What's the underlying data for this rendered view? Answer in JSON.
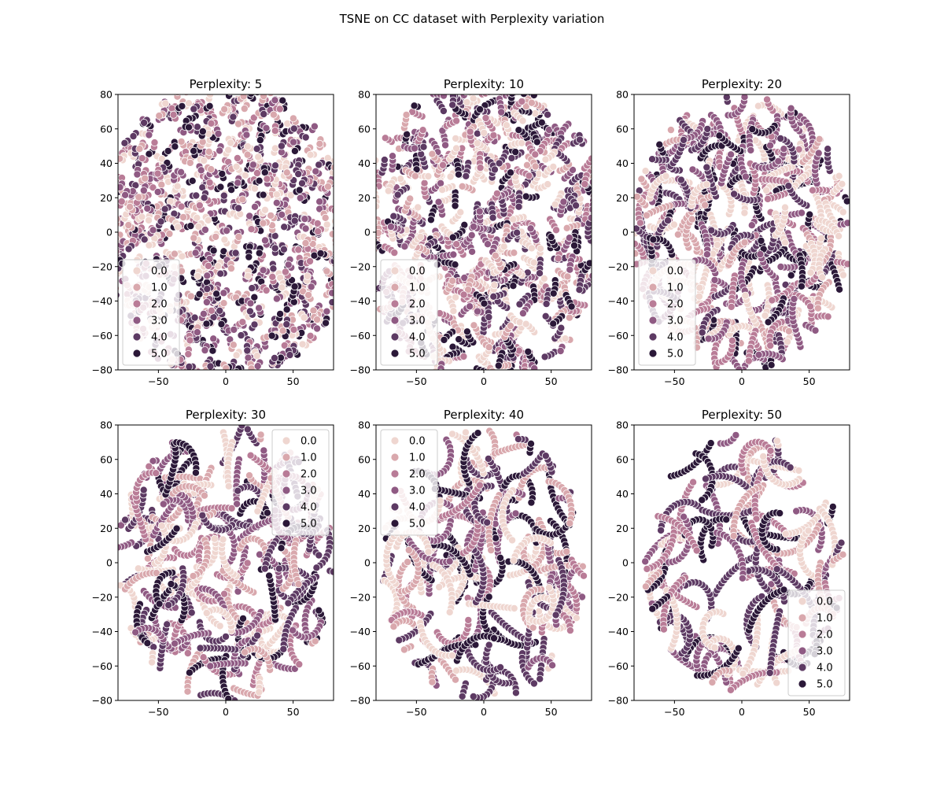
{
  "suptitle": "TSNE on CC dataset with Perplexity variation",
  "chart_data": [
    {
      "type": "scatter",
      "title": "Perplexity: 5",
      "perplexity": 5,
      "xlim": [
        -80,
        80
      ],
      "ylim": [
        -80,
        80
      ],
      "xticks": [
        -50,
        0,
        50
      ],
      "yticks": [
        -80,
        -60,
        -40,
        -20,
        0,
        20,
        40,
        60,
        80
      ],
      "hue_levels": [
        "0.0",
        "1.0",
        "2.0",
        "3.0",
        "4.0",
        "5.0"
      ],
      "legend_loc": "lower-left",
      "point_cloud_extent": {
        "x": [
          -80,
          80
        ],
        "y": [
          -80,
          80
        ]
      },
      "pattern": "dense uniform mixed cloud filling the whole axes"
    },
    {
      "type": "scatter",
      "title": "Perplexity: 10",
      "perplexity": 10,
      "xlim": [
        -80,
        80
      ],
      "ylim": [
        -80,
        80
      ],
      "xticks": [
        -50,
        0,
        50
      ],
      "yticks": [
        -80,
        -60,
        -40,
        -20,
        0,
        20,
        40,
        60,
        80
      ],
      "hue_levels": [
        "0.0",
        "1.0",
        "2.0",
        "3.0",
        "4.0",
        "5.0"
      ],
      "legend_loc": "lower-left",
      "point_cloud_extent": {
        "x": [
          -80,
          80
        ],
        "y": [
          -80,
          80
        ]
      },
      "pattern": "dense circular cloud with short worm-like clusters"
    },
    {
      "type": "scatter",
      "title": "Perplexity: 20",
      "perplexity": 20,
      "xlim": [
        -80,
        80
      ],
      "ylim": [
        -80,
        80
      ],
      "xticks": [
        -50,
        0,
        50
      ],
      "yticks": [
        -80,
        -60,
        -40,
        -20,
        0,
        20,
        40,
        60,
        80
      ],
      "hue_levels": [
        "0.0",
        "1.0",
        "2.0",
        "3.0",
        "4.0",
        "5.0"
      ],
      "legend_loc": "lower-left",
      "point_cloud_extent": {
        "x": [
          -80,
          80
        ],
        "y": [
          -80,
          80
        ]
      },
      "pattern": "circular cloud made of curved strands"
    },
    {
      "type": "scatter",
      "title": "Perplexity: 30",
      "perplexity": 30,
      "xlim": [
        -80,
        80
      ],
      "ylim": [
        -80,
        80
      ],
      "xticks": [
        -50,
        0,
        50
      ],
      "yticks": [
        -80,
        -60,
        -40,
        -20,
        0,
        20,
        40,
        60,
        80
      ],
      "hue_levels": [
        "0.0",
        "1.0",
        "2.0",
        "3.0",
        "4.0",
        "5.0"
      ],
      "legend_loc": "upper-right",
      "point_cloud_extent": {
        "x": [
          -80,
          80
        ],
        "y": [
          -80,
          80
        ]
      },
      "pattern": "circular cloud of elongated strands"
    },
    {
      "type": "scatter",
      "title": "Perplexity: 40",
      "perplexity": 40,
      "xlim": [
        -80,
        80
      ],
      "ylim": [
        -80,
        80
      ],
      "xticks": [
        -50,
        0,
        50
      ],
      "yticks": [
        -80,
        -60,
        -40,
        -20,
        0,
        20,
        40,
        60,
        80
      ],
      "hue_levels": [
        "0.0",
        "1.0",
        "2.0",
        "3.0",
        "4.0",
        "5.0"
      ],
      "legend_loc": "upper-left",
      "point_cloud_extent": {
        "x": [
          -75,
          75
        ],
        "y": [
          -80,
          78
        ]
      },
      "pattern": "circular cloud of long curved strands"
    },
    {
      "type": "scatter",
      "title": "Perplexity: 50",
      "perplexity": 50,
      "xlim": [
        -80,
        80
      ],
      "ylim": [
        -80,
        80
      ],
      "xticks": [
        -50,
        0,
        50
      ],
      "yticks": [
        -80,
        -60,
        -40,
        -20,
        0,
        20,
        40,
        60,
        80
      ],
      "hue_levels": [
        "0.0",
        "1.0",
        "2.0",
        "3.0",
        "4.0",
        "5.0"
      ],
      "legend_loc": "lower-right",
      "point_cloud_extent": {
        "x": [
          -72,
          75
        ],
        "y": [
          -75,
          75
        ]
      },
      "pattern": "elliptical cloud of long sparse strands"
    }
  ],
  "colors": {
    "hue": [
      "#efd6d0",
      "#d9a8ad",
      "#b97c97",
      "#8f5a83",
      "#5d3a63",
      "#2b1838"
    ],
    "axis": "#000000",
    "marker_edge": "#ffffff"
  }
}
